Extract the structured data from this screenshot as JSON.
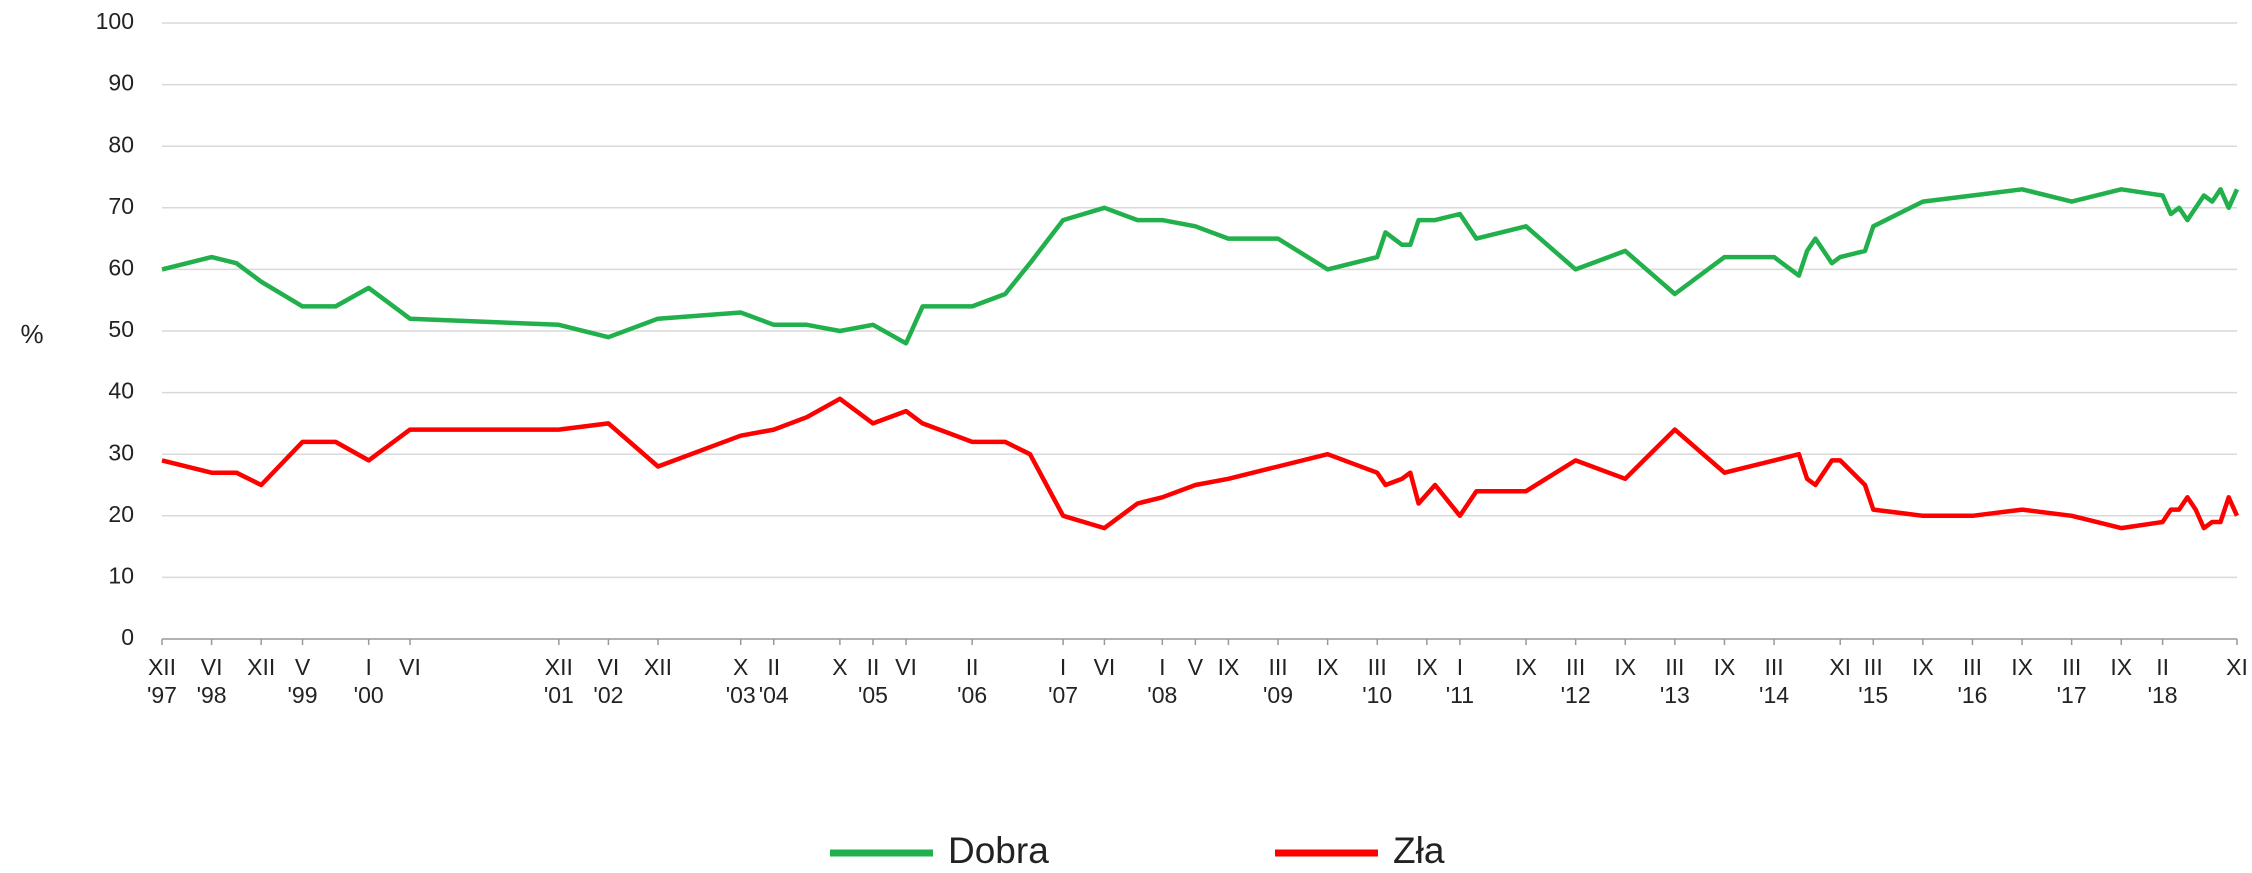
{
  "chart_data": {
    "type": "line",
    "y_label": "%",
    "x": [
      "1997-12",
      "1998-06",
      "1998-09",
      "1998-12",
      "1999-05",
      "1999-09",
      "2000-01",
      "2000-06",
      "2001-12",
      "2002-06",
      "2002-12",
      "2003-10",
      "2004-02",
      "2004-06",
      "2004-10",
      "2005-02",
      "2005-06",
      "2005-08",
      "2006-02",
      "2006-06",
      "2006-09",
      "2007-01",
      "2007-06",
      "2007-10",
      "2008-01",
      "2008-05",
      "2008-09",
      "2009-03",
      "2009-09",
      "2010-03",
      "2010-04",
      "2010-06",
      "2010-07",
      "2010-08",
      "2010-10",
      "2011-01",
      "2011-03",
      "2011-09",
      "2012-03",
      "2012-09",
      "2013-03",
      "2013-09",
      "2014-03",
      "2014-06",
      "2014-07",
      "2014-08",
      "2014-10",
      "2014-11",
      "2015-02",
      "2015-03",
      "2015-09",
      "2016-03",
      "2016-09",
      "2017-03",
      "2017-09",
      "2018-02",
      "2018-03",
      "2018-04",
      "2018-05",
      "2018-06",
      "2018-07",
      "2018-08",
      "2018-09",
      "2018-10",
      "2018-11"
    ],
    "series": [
      {
        "name": "Dobra",
        "color": "#21b04b",
        "values": [
          60,
          62,
          61,
          58,
          54,
          54,
          57,
          52,
          51,
          49,
          52,
          53,
          51,
          51,
          50,
          51,
          48,
          54,
          54,
          56,
          61,
          68,
          70,
          68,
          68,
          67,
          65,
          65,
          60,
          62,
          66,
          64,
          64,
          68,
          68,
          69,
          65,
          67,
          60,
          63,
          56,
          62,
          62,
          59,
          63,
          65,
          61,
          62,
          63,
          67,
          71,
          72,
          73,
          71,
          73,
          72,
          69,
          70,
          68,
          70,
          72,
          71,
          73,
          70,
          73
        ]
      },
      {
        "name": "Zła",
        "color": "#ff0000",
        "values": [
          29,
          27,
          27,
          25,
          32,
          32,
          29,
          34,
          34,
          35,
          28,
          33,
          34,
          36,
          39,
          35,
          37,
          35,
          32,
          32,
          30,
          20,
          18,
          22,
          23,
          25,
          26,
          28,
          30,
          27,
          25,
          26,
          27,
          22,
          25,
          20,
          24,
          24,
          29,
          26,
          34,
          27,
          29,
          30,
          26,
          25,
          29,
          29,
          25,
          21,
          20,
          20,
          21,
          20,
          18,
          19,
          21,
          21,
          23,
          21,
          18,
          19,
          19,
          23,
          20
        ]
      }
    ],
    "xlim": [
      "1997-12",
      "2018-11"
    ],
    "xticks": [
      {
        "value": "1997-12",
        "label": [
          "XII",
          "'97"
        ]
      },
      {
        "value": "1998-06",
        "label": [
          "VI",
          "'98"
        ]
      },
      {
        "value": "1998-12",
        "label": [
          "XII"
        ]
      },
      {
        "value": "1999-05",
        "label": [
          "V",
          "'99"
        ]
      },
      {
        "value": "2000-01",
        "label": [
          "I",
          "'00"
        ]
      },
      {
        "value": "2000-06",
        "label": [
          "VI"
        ]
      },
      {
        "value": "2001-12",
        "label": [
          "XII",
          "'01"
        ]
      },
      {
        "value": "2002-06",
        "label": [
          "VI",
          "'02"
        ]
      },
      {
        "value": "2002-12",
        "label": [
          "XII"
        ]
      },
      {
        "value": "2003-10",
        "label": [
          "X",
          "'03"
        ]
      },
      {
        "value": "2004-02",
        "label": [
          "II",
          "'04"
        ]
      },
      {
        "value": "2004-10",
        "label": [
          "X"
        ]
      },
      {
        "value": "2005-02",
        "label": [
          "II",
          "'05"
        ]
      },
      {
        "value": "2005-06",
        "label": [
          "VI"
        ]
      },
      {
        "value": "2006-02",
        "label": [
          "II",
          "'06"
        ]
      },
      {
        "value": "2007-01",
        "label": [
          "I",
          "'07"
        ]
      },
      {
        "value": "2007-06",
        "label": [
          "VI"
        ]
      },
      {
        "value": "2008-01",
        "label": [
          "I",
          "'08"
        ]
      },
      {
        "value": "2008-05",
        "label": [
          "V"
        ]
      },
      {
        "value": "2008-09",
        "label": [
          "IX"
        ]
      },
      {
        "value": "2009-03",
        "label": [
          "III",
          "'09"
        ]
      },
      {
        "value": "2009-09",
        "label": [
          "IX"
        ]
      },
      {
        "value": "2010-03",
        "label": [
          "III",
          "'10"
        ]
      },
      {
        "value": "2010-09",
        "label": [
          "IX"
        ]
      },
      {
        "value": "2011-01",
        "label": [
          "I",
          "'11"
        ]
      },
      {
        "value": "2011-09",
        "label": [
          "IX"
        ]
      },
      {
        "value": "2012-03",
        "label": [
          "III",
          "'12"
        ]
      },
      {
        "value": "2012-09",
        "label": [
          "IX"
        ]
      },
      {
        "value": "2013-03",
        "label": [
          "III",
          "'13"
        ]
      },
      {
        "value": "2013-09",
        "label": [
          "IX"
        ]
      },
      {
        "value": "2014-03",
        "label": [
          "III",
          "'14"
        ]
      },
      {
        "value": "2014-11",
        "label": [
          "XI"
        ]
      },
      {
        "value": "2015-03",
        "label": [
          "III",
          "'15"
        ]
      },
      {
        "value": "2015-09",
        "label": [
          "IX"
        ]
      },
      {
        "value": "2016-03",
        "label": [
          "III",
          "'16"
        ]
      },
      {
        "value": "2016-09",
        "label": [
          "IX"
        ]
      },
      {
        "value": "2017-03",
        "label": [
          "III",
          "'17"
        ]
      },
      {
        "value": "2017-09",
        "label": [
          "IX"
        ]
      },
      {
        "value": "2018-02",
        "label": [
          "II",
          "'18"
        ]
      },
      {
        "value": "2018-11",
        "label": [
          "XI"
        ]
      }
    ],
    "ylim": [
      0,
      100
    ],
    "yticks": [
      0,
      10,
      20,
      30,
      40,
      50,
      60,
      70,
      80,
      90,
      100
    ],
    "grid": true,
    "legend": "bottom"
  }
}
